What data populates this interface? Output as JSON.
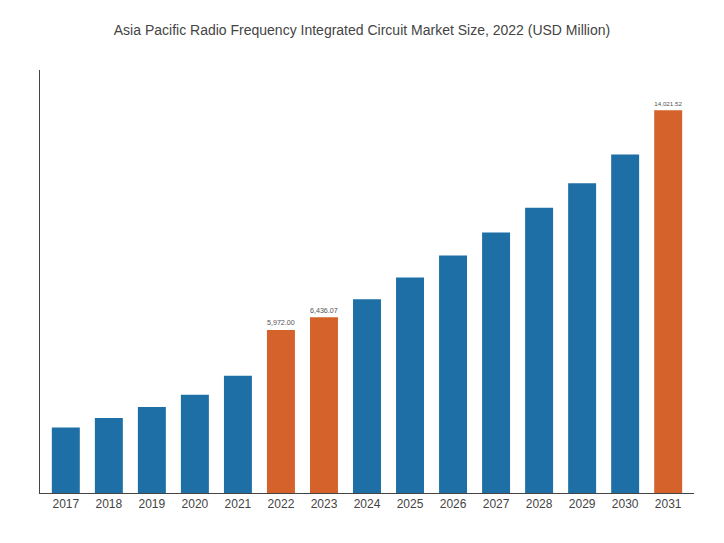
{
  "chart_data": {
    "type": "bar",
    "title": "Asia Pacific Radio Frequency Integrated Circuit Market Size, 2022 (USD Million)",
    "categories": [
      "2017",
      "2018",
      "2019",
      "2020",
      "2021",
      "2022",
      "2023",
      "2024",
      "2025",
      "2026",
      "2027",
      "2028",
      "2029",
      "2030",
      "2031"
    ],
    "values": [
      2400,
      2750,
      3150,
      3600,
      4300,
      5972.0,
      6436.07,
      7100,
      7900,
      8700,
      9550,
      10450,
      11350,
      12400,
      14021.52
    ],
    "value_labels": [
      null,
      null,
      null,
      null,
      null,
      "5,972.00",
      "6,436.07",
      null,
      null,
      null,
      null,
      null,
      null,
      null,
      "14,021.52"
    ],
    "colors": [
      "#1d6fa5",
      "#1d6fa5",
      "#1d6fa5",
      "#1d6fa5",
      "#1d6fa5",
      "#d4622a",
      "#d4622a",
      "#1d6fa5",
      "#1d6fa5",
      "#1d6fa5",
      "#1d6fa5",
      "#1d6fa5",
      "#1d6fa5",
      "#1d6fa5",
      "#d4622a"
    ],
    "ylim": [
      0,
      15500
    ],
    "grid": false,
    "data_labels": true,
    "tick_labels": "x"
  }
}
